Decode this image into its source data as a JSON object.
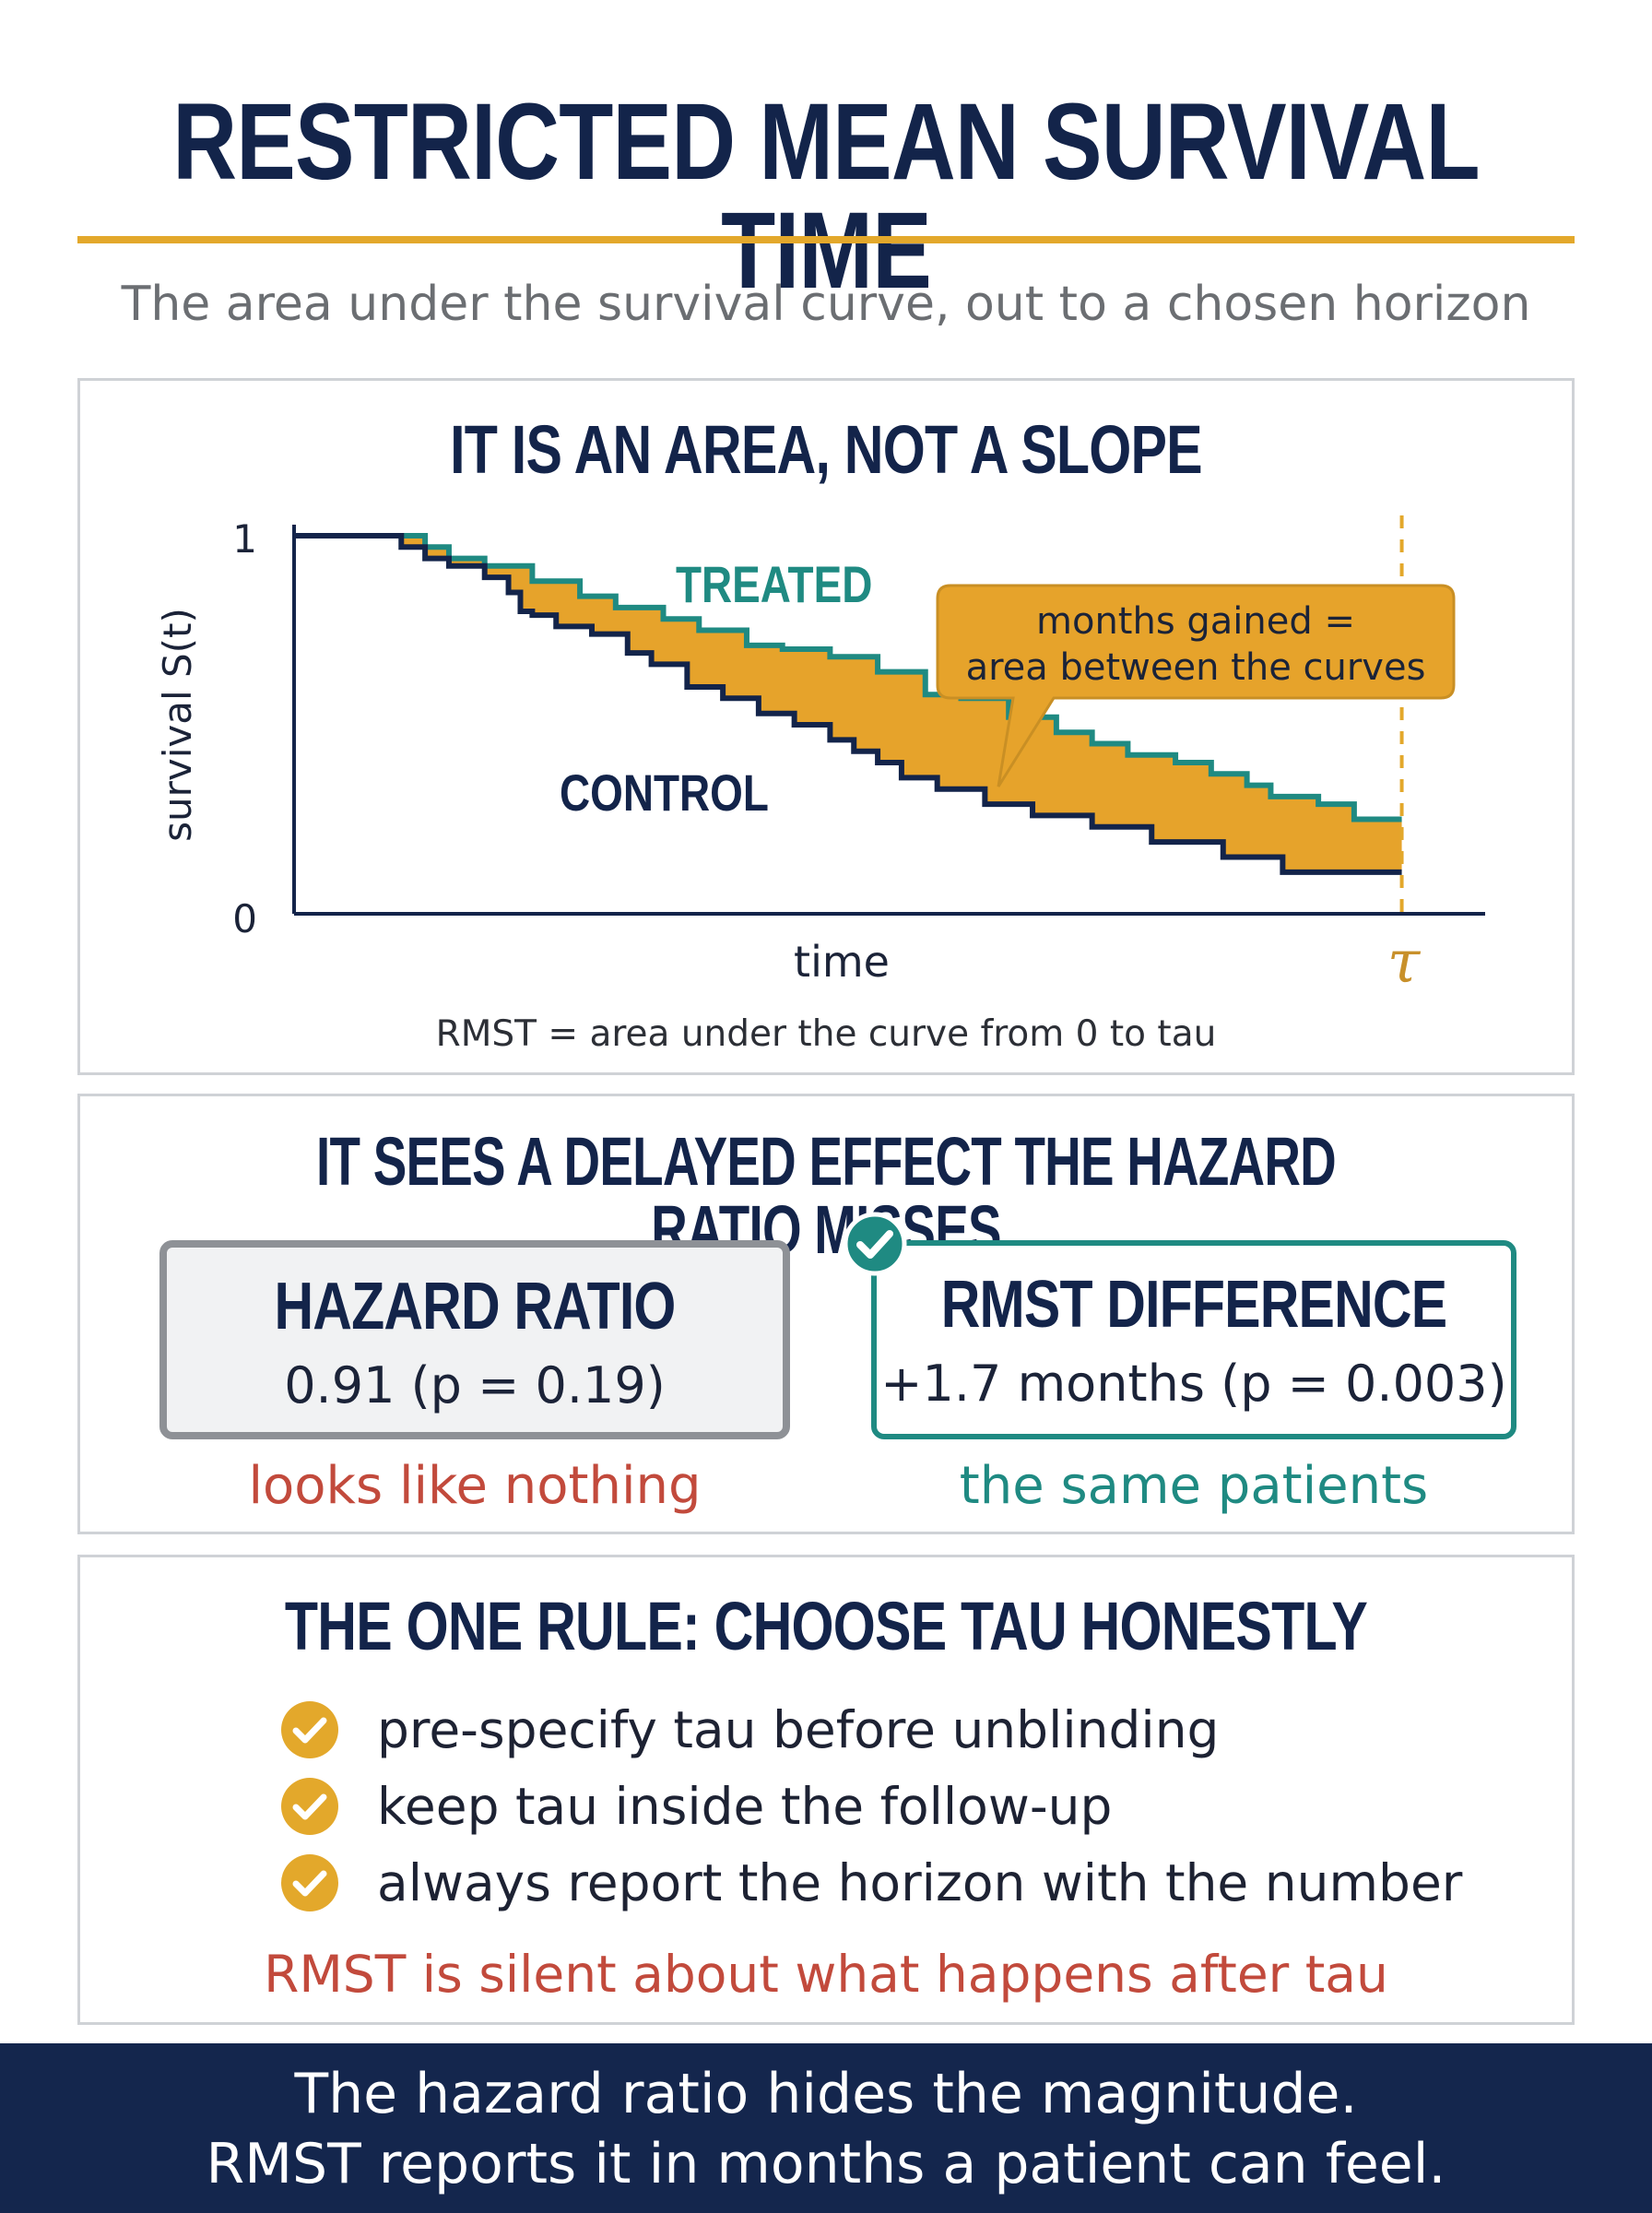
{
  "header": {
    "title": "RESTRICTED MEAN SURVIVAL TIME",
    "subtitle": "The area under the survival curve, out to a chosen horizon"
  },
  "panel_area": {
    "heading": "IT IS AN AREA, NOT A SLOPE",
    "caption": "RMST = area under the curve from 0 to tau"
  },
  "chart_data": {
    "type": "line",
    "ylabel": "survival S(t)",
    "xlabel": "time",
    "y_ticks": [
      "1",
      "0"
    ],
    "ylim": [
      0,
      1
    ],
    "xlim": [
      0,
      1
    ],
    "tau_label": "τ",
    "tau": 0.93,
    "series": [
      {
        "name": "TREATED",
        "color": "#1f8a82",
        "x": [
          0,
          0.095,
          0.11,
          0.13,
          0.16,
          0.2,
          0.24,
          0.27,
          0.31,
          0.34,
          0.38,
          0.41,
          0.45,
          0.49,
          0.53,
          0.56,
          0.6,
          0.64,
          0.67,
          0.7,
          0.74,
          0.77,
          0.8,
          0.82,
          0.86,
          0.89,
          0.93
        ],
        "y": [
          1.0,
          1.0,
          0.97,
          0.94,
          0.92,
          0.88,
          0.84,
          0.81,
          0.78,
          0.75,
          0.71,
          0.7,
          0.68,
          0.64,
          0.58,
          0.57,
          0.52,
          0.48,
          0.45,
          0.42,
          0.4,
          0.37,
          0.34,
          0.31,
          0.29,
          0.25,
          0.25
        ]
      },
      {
        "name": "CONTROL",
        "color": "#13244a",
        "x": [
          0,
          0.07,
          0.09,
          0.11,
          0.13,
          0.16,
          0.18,
          0.19,
          0.2,
          0.22,
          0.25,
          0.28,
          0.3,
          0.33,
          0.36,
          0.39,
          0.42,
          0.45,
          0.47,
          0.49,
          0.51,
          0.54,
          0.58,
          0.62,
          0.67,
          0.72,
          0.78,
          0.83,
          0.93
        ],
        "y": [
          1.0,
          1.0,
          0.97,
          0.94,
          0.92,
          0.89,
          0.85,
          0.8,
          0.79,
          0.76,
          0.74,
          0.69,
          0.66,
          0.6,
          0.57,
          0.53,
          0.5,
          0.46,
          0.43,
          0.4,
          0.36,
          0.33,
          0.29,
          0.26,
          0.23,
          0.19,
          0.15,
          0.11,
          0.11
        ]
      }
    ],
    "fill_color": "#e6a32b",
    "callout": "months gained =\narea between the curves"
  },
  "panel_compare": {
    "heading": "IT SEES A DELAYED EFFECT THE HAZARD RATIO MISSES",
    "hr_card": {
      "title": "HAZARD RATIO",
      "value": "0.91 (p = 0.19)",
      "note": "looks like nothing"
    },
    "rmst_card": {
      "title": "RMST DIFFERENCE",
      "value": "+1.7 months (p = 0.003)",
      "note": "the same patients"
    }
  },
  "panel_rule": {
    "heading": "THE ONE RULE: CHOOSE TAU HONESTLY",
    "items": [
      "pre-specify tau before unblinding",
      "keep tau inside the follow-up",
      "always report the horizon with the number"
    ],
    "warning": "RMST is silent about what happens after tau"
  },
  "footer": {
    "line1": "The hazard ratio hides the magnitude.",
    "line2": "RMST reports it in months a patient can feel."
  },
  "colors": {
    "navy": "#13244a",
    "gold": "#e3a82b",
    "teal": "#1f8a82",
    "red": "#c24a3c"
  }
}
